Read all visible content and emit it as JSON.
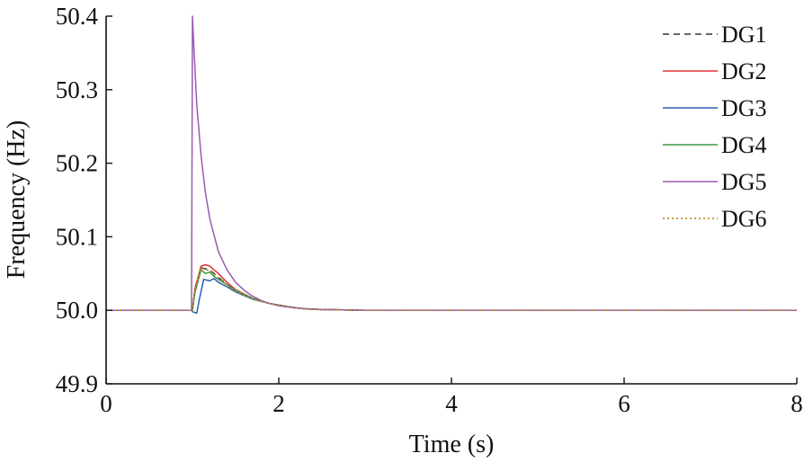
{
  "chart_data": {
    "type": "line",
    "title": "",
    "xlabel": "Time (s)",
    "ylabel": "Frequency (Hz)",
    "xlim": [
      0,
      8
    ],
    "ylim": [
      49.9,
      50.4
    ],
    "xticks": [
      0,
      2,
      4,
      6,
      8
    ],
    "xtick_labels": [
      "0",
      "2",
      "4",
      "6",
      "8"
    ],
    "yticks": [
      49.9,
      50.0,
      50.1,
      50.2,
      50.3,
      50.4
    ],
    "ytick_labels": [
      "49.9",
      "50.0",
      "50.1",
      "50.2",
      "50.3",
      "50.4"
    ],
    "grid": false,
    "legend_position": "top-right",
    "series": [
      {
        "name": "DG1",
        "color": "#333333",
        "dash": "dashed",
        "x": [
          0,
          0.99,
          1.0,
          1.03,
          1.1,
          1.2,
          1.3,
          1.4,
          1.5,
          1.7,
          1.9,
          2.1,
          2.3,
          2.5,
          3.0,
          4.0,
          6.0,
          8.0
        ],
        "y": [
          50.0,
          50.0,
          50.0,
          50.03,
          50.058,
          50.055,
          50.045,
          50.035,
          50.027,
          50.016,
          50.009,
          50.005,
          50.002,
          50.001,
          50.0,
          50.0,
          50.0,
          50.0
        ]
      },
      {
        "name": "DG2",
        "color": "#e03030",
        "dash": "solid",
        "x": [
          0,
          0.99,
          1.0,
          1.03,
          1.1,
          1.15,
          1.2,
          1.3,
          1.4,
          1.5,
          1.7,
          1.9,
          2.1,
          2.3,
          2.5,
          3.0,
          4.0,
          6.0,
          8.0
        ],
        "y": [
          50.0,
          50.0,
          50.0,
          50.03,
          50.06,
          50.062,
          50.06,
          50.05,
          50.038,
          50.028,
          50.016,
          50.009,
          50.005,
          50.002,
          50.001,
          50.0,
          50.0,
          50.0,
          50.0
        ]
      },
      {
        "name": "DG3",
        "color": "#2860b0",
        "dash": "solid",
        "x": [
          0,
          0.99,
          1.0,
          1.05,
          1.08,
          1.13,
          1.2,
          1.25,
          1.3,
          1.4,
          1.5,
          1.7,
          1.9,
          2.1,
          2.3,
          2.5,
          3.0,
          4.0,
          6.0,
          8.0
        ],
        "y": [
          50.0,
          50.0,
          49.998,
          49.996,
          50.015,
          50.042,
          50.04,
          50.043,
          50.038,
          50.032,
          50.025,
          50.015,
          50.009,
          50.005,
          50.002,
          50.001,
          50.0,
          50.0,
          50.0,
          50.0
        ]
      },
      {
        "name": "DG4",
        "color": "#3a9a40",
        "dash": "solid",
        "x": [
          0,
          0.99,
          1.0,
          1.03,
          1.1,
          1.15,
          1.2,
          1.25,
          1.3,
          1.4,
          1.5,
          1.7,
          1.9,
          2.1,
          2.3,
          2.5,
          3.0,
          4.0,
          6.0,
          8.0
        ],
        "y": [
          50.0,
          50.0,
          50.0,
          50.025,
          50.055,
          50.05,
          50.052,
          50.046,
          50.042,
          50.035,
          50.027,
          50.016,
          50.009,
          50.005,
          50.002,
          50.001,
          50.0,
          50.0,
          50.0,
          50.0
        ]
      },
      {
        "name": "DG5",
        "color": "#9a5ab0",
        "dash": "solid",
        "x": [
          0,
          0.99,
          1.0,
          1.02,
          1.05,
          1.1,
          1.15,
          1.2,
          1.3,
          1.4,
          1.5,
          1.6,
          1.7,
          1.8,
          1.9,
          2.0,
          2.2,
          2.5,
          3.0,
          4.0,
          6.0,
          8.0
        ],
        "y": [
          50.0,
          50.0,
          50.4,
          50.35,
          50.28,
          50.21,
          50.16,
          50.125,
          50.08,
          50.055,
          50.038,
          50.027,
          50.019,
          50.013,
          50.009,
          50.006,
          50.003,
          50.001,
          50.0,
          50.0,
          50.0,
          50.0
        ]
      },
      {
        "name": "DG6",
        "color": "#c08a30",
        "dash": "dotted",
        "x": [
          0,
          0.99,
          1.0,
          1.03,
          1.1,
          1.2,
          1.3,
          1.4,
          1.5,
          1.7,
          1.9,
          2.1,
          2.3,
          2.5,
          3.0,
          4.0,
          6.0,
          8.0
        ],
        "y": [
          50.0,
          50.0,
          50.0,
          50.03,
          50.057,
          50.054,
          50.044,
          50.034,
          50.026,
          50.015,
          50.009,
          50.005,
          50.002,
          50.001,
          50.0,
          50.0,
          50.0,
          50.0
        ]
      }
    ]
  }
}
